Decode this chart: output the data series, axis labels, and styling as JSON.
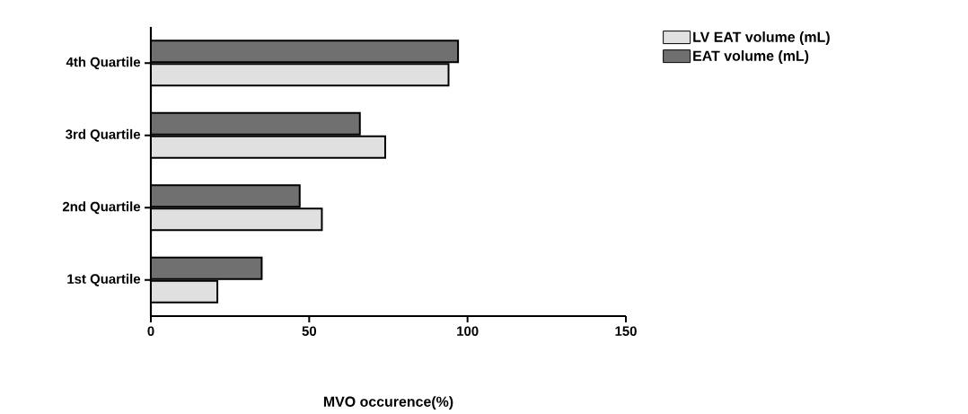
{
  "chart_data": {
    "type": "bar",
    "orientation": "horizontal",
    "xlabel": "MVO occurence(%)",
    "categories": [
      "4th Quartile",
      "3rd Quartile",
      "2nd Quartile",
      "1st Quartile"
    ],
    "series": [
      {
        "name": "LV EAT volume (mL)",
        "color": "#e0e0e0",
        "values": [
          94,
          74,
          54,
          21
        ]
      },
      {
        "name": "EAT volume (mL)",
        "color": "#707070",
        "values": [
          97,
          66,
          47,
          35
        ]
      }
    ],
    "xlim": [
      0,
      150
    ],
    "xticks": [
      0,
      50,
      100,
      150
    ],
    "grid": false,
    "legend": "top right"
  }
}
